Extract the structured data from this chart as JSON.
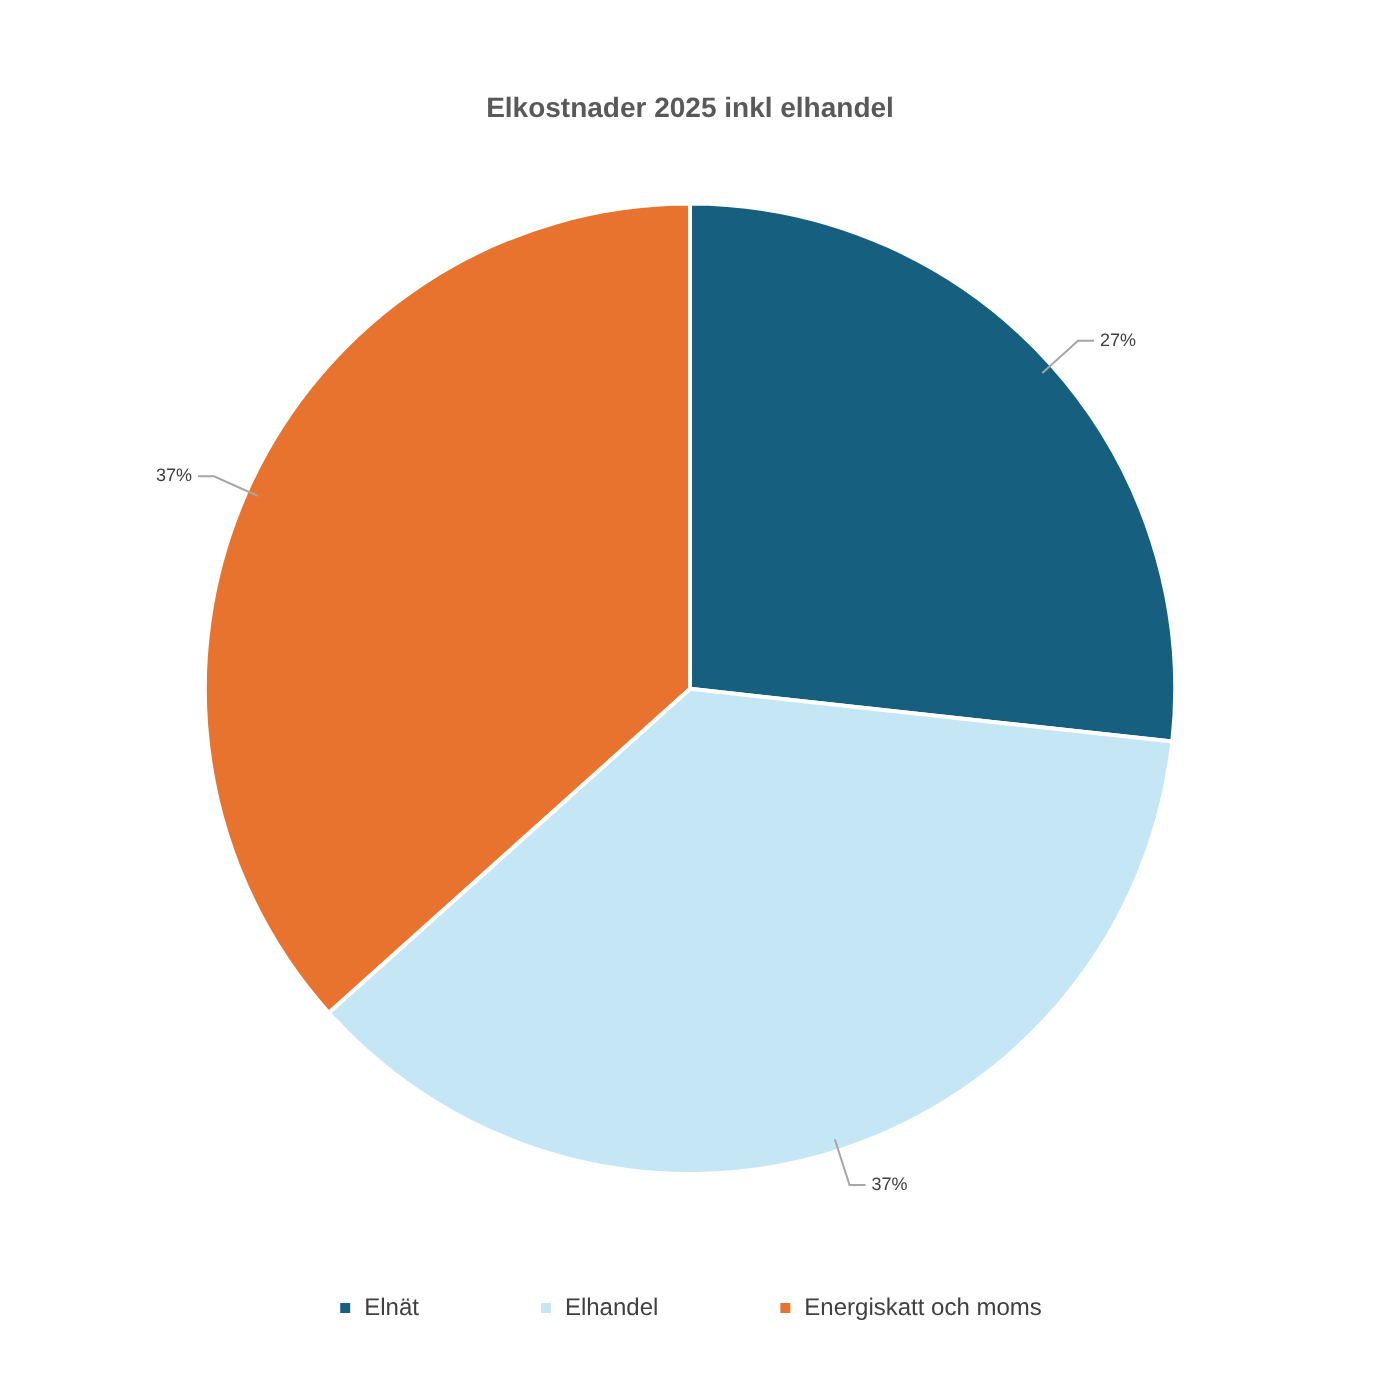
{
  "chart_data": {
    "type": "pie",
    "title": "Elkostnader 2025 inkl elhandel",
    "categories": [
      "Elnät",
      "Elhandel",
      "Energiskatt och moms"
    ],
    "values": [
      27,
      37,
      37
    ],
    "colors": [
      "#165f7e",
      "#c5e6f4",
      "#e8732f"
    ],
    "value_labels": [
      "27%",
      "37%",
      "37%"
    ],
    "legend": "bottom"
  }
}
